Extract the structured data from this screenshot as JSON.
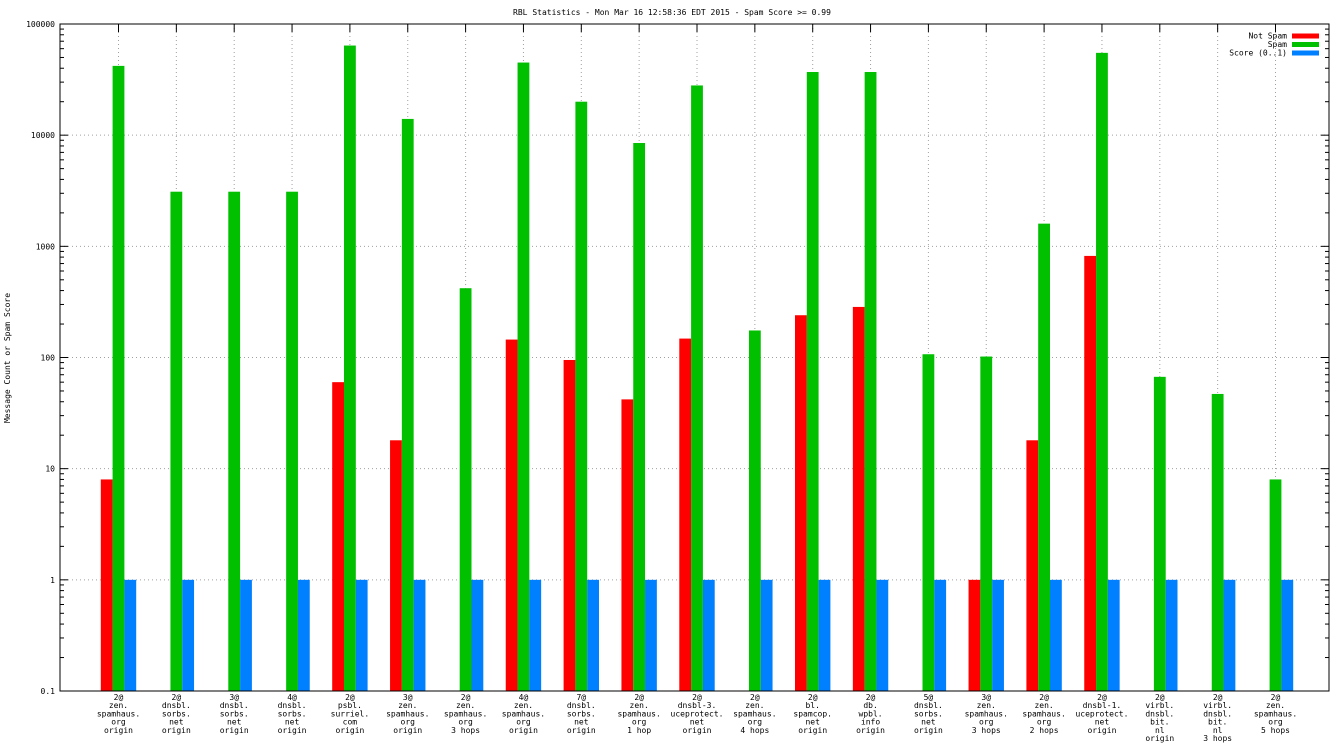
{
  "chart_data": {
    "type": "bar",
    "title": "RBL Statistics - Mon Mar 16 12:58:36 EDT 2015 - Spam Score >= 0.99",
    "xlabel": "",
    "ylabel": "Message Count or Spam Score",
    "yscale": "log",
    "ylim": [
      0.1,
      100000
    ],
    "y_ticks": [
      "0.1",
      "1",
      "10",
      "100",
      "1000",
      "10000",
      "100000"
    ],
    "grid": true,
    "legend_position": "top-right",
    "categories": [
      [
        "2@",
        "zen.",
        "spamhaus.",
        "org",
        "origin"
      ],
      [
        "2@",
        "dnsbl.",
        "sorbs.",
        "net",
        "origin"
      ],
      [
        "3@",
        "dnsbl.",
        "sorbs.",
        "net",
        "origin"
      ],
      [
        "4@",
        "dnsbl.",
        "sorbs.",
        "net",
        "origin"
      ],
      [
        "2@",
        "psbl.",
        "surriel.",
        "com",
        "origin"
      ],
      [
        "3@",
        "zen.",
        "spamhaus.",
        "org",
        "origin"
      ],
      [
        "2@",
        "zen.",
        "spamhaus.",
        "org",
        "3 hops"
      ],
      [
        "4@",
        "zen.",
        "spamhaus.",
        "org",
        "origin"
      ],
      [
        "7@",
        "dnsbl.",
        "sorbs.",
        "net",
        "origin"
      ],
      [
        "2@",
        "zen.",
        "spamhaus.",
        "org",
        "1 hop"
      ],
      [
        "2@",
        "dnsbl-3.",
        "uceprotect.",
        "net",
        "origin"
      ],
      [
        "2@",
        "zen.",
        "spamhaus.",
        "org",
        "4 hops"
      ],
      [
        "2@",
        "bl.",
        "spamcop.",
        "net",
        "origin"
      ],
      [
        "2@",
        "db.",
        "wpbl.",
        "info",
        "origin"
      ],
      [
        "5@",
        "dnsbl.",
        "sorbs.",
        "net",
        "origin"
      ],
      [
        "3@",
        "zen.",
        "spamhaus.",
        "org",
        "3 hops"
      ],
      [
        "2@",
        "zen.",
        "spamhaus.",
        "org",
        "2 hops"
      ],
      [
        "2@",
        "dnsbl-1.",
        "uceprotect.",
        "net",
        "origin"
      ],
      [
        "2@",
        "virbl.",
        "dnsbl.",
        "bit.",
        "nl",
        "origin"
      ],
      [
        "2@",
        "virbl.",
        "dnsbl.",
        "bit.",
        "nl",
        "3 hops"
      ],
      [
        "2@",
        "zen.",
        "spamhaus.",
        "org",
        "5 hops"
      ]
    ],
    "series": [
      {
        "name": "Not Spam",
        "color": "#ff0000",
        "values": [
          8,
          null,
          null,
          null,
          60,
          18,
          null,
          145,
          95,
          42,
          148,
          null,
          240,
          285,
          null,
          1,
          18,
          820,
          null,
          null,
          null
        ]
      },
      {
        "name": "Spam",
        "color": "#00c000",
        "values": [
          42000,
          3100,
          3100,
          3100,
          64000,
          14000,
          420,
          45000,
          20000,
          8500,
          28000,
          175,
          37000,
          37000,
          107,
          102,
          1600,
          55000,
          67,
          47,
          8
        ]
      },
      {
        "name": "Score (0..1)",
        "color": "#0080ff",
        "values": [
          1,
          1,
          1,
          1,
          1,
          1,
          1,
          1,
          1,
          1,
          1,
          1,
          1,
          1,
          1,
          1,
          1,
          1,
          1,
          1,
          1
        ]
      }
    ]
  }
}
